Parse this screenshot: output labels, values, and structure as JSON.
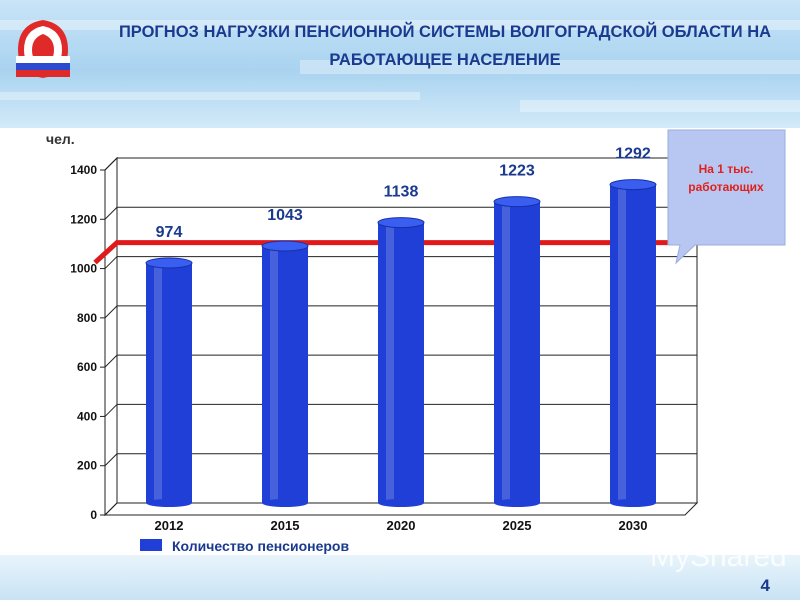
{
  "title": "ПРОГНОЗ НАГРУЗКИ ПЕНСИОННОЙ СИСТЕМЫ ВОЛГОГРАДСКОЙ ОБЛАСТИ НА РАБОТАЮЩЕЕ НАСЕЛЕНИЕ",
  "callout": "На 1 тыс. работающих",
  "page_number": "4",
  "watermark": "MyShared",
  "colors": {
    "bar": "#1f3fd6",
    "bar_top": "#3a5ef0",
    "line": "#e01a1a",
    "title": "#1a3a8f"
  },
  "chart_data": {
    "type": "bar",
    "categories": [
      "2012",
      "2015",
      "2020",
      "2025",
      "2030"
    ],
    "series": [
      {
        "name": "Количество пенсионеров",
        "values": [
          974,
          1043,
          1138,
          1223,
          1292
        ]
      }
    ],
    "reference_line": 1000,
    "ylabel": "чел.",
    "ylim": [
      0,
      1400
    ],
    "yticks": [
      0,
      200,
      400,
      600,
      800,
      1000,
      1200,
      1400
    ],
    "grid": true,
    "legend": "bottom-left"
  }
}
